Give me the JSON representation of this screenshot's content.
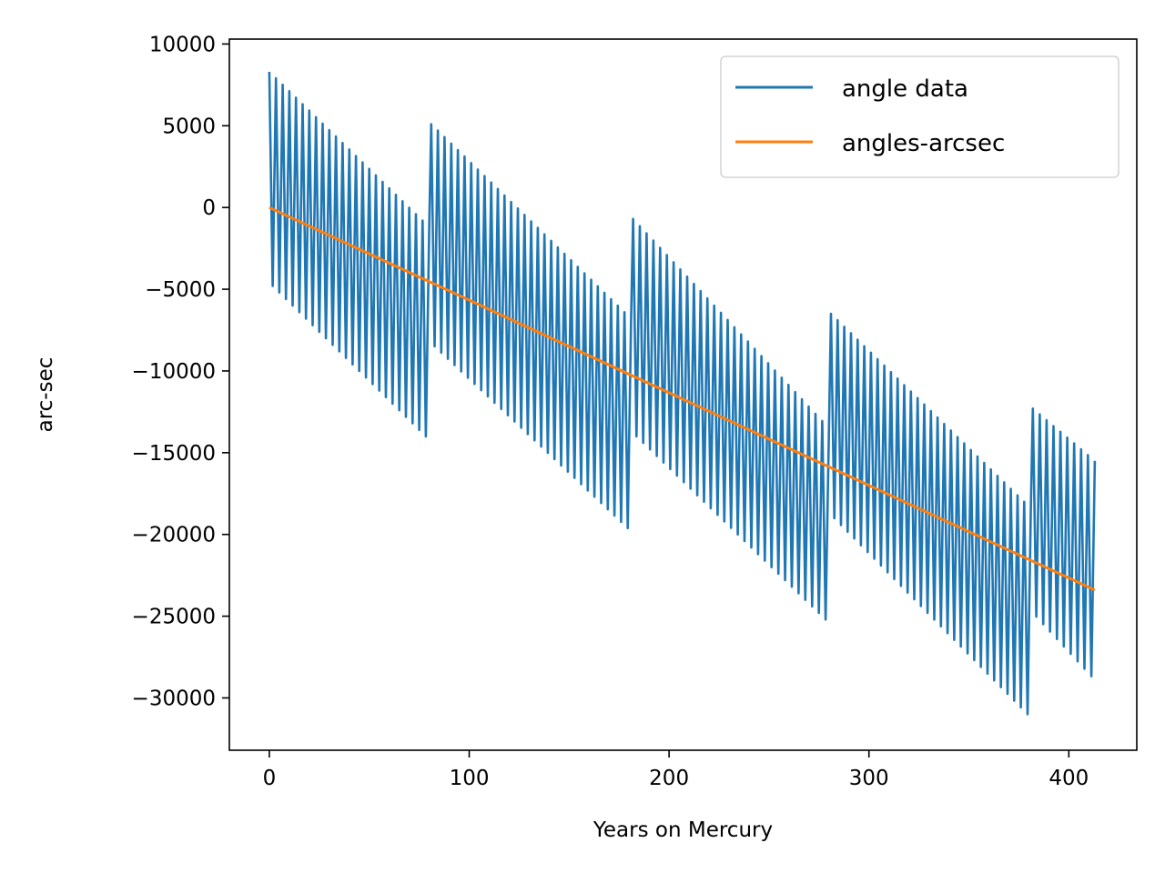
{
  "chart_data": {
    "type": "line",
    "title": "",
    "xlabel": "Years on Mercury",
    "ylabel": "arc-sec",
    "xlim": [
      -20,
      434
    ],
    "ylim": [
      -33200,
      10300
    ],
    "x_ticks": [
      0,
      100,
      200,
      300,
      400
    ],
    "x_tick_labels": [
      "0",
      "100",
      "200",
      "300",
      "400"
    ],
    "y_ticks": [
      10000,
      5000,
      0,
      -5000,
      -10000,
      -15000,
      -20000,
      -25000,
      -30000
    ],
    "y_tick_labels": [
      "10000",
      "5000",
      "0",
      "−5000",
      "−10000",
      "−15000",
      "−20000",
      "−25000",
      "−30000"
    ],
    "grid": false,
    "legend_position": "top-right",
    "series": [
      {
        "name": "angle data",
        "color": "#1f77b4",
        "segments": [
          {
            "x_start": 0,
            "x_end": 80,
            "upper": [
              8300,
              -1200
            ],
            "lower": [
              -4600,
              -14200
            ]
          },
          {
            "x_start": 81,
            "x_end": 181,
            "upper": [
              5100,
              -6800
            ],
            "lower": [
              -8300,
              -19800
            ]
          },
          {
            "x_start": 182,
            "x_end": 280,
            "upper": [
              -700,
              -13500
            ],
            "lower": [
              -13800,
              -25400
            ]
          },
          {
            "x_start": 281,
            "x_end": 381,
            "upper": [
              -6500,
              -18400
            ],
            "lower": [
              -18800,
              -31200
            ]
          },
          {
            "x_start": 382,
            "x_end": 413,
            "upper": [
              -12300,
              -15500
            ],
            "lower": [
              -24800,
              -28900
            ]
          }
        ],
        "oscillations_per_segment": 30
      },
      {
        "name": "angles-arcsec",
        "color": "#ff7f0e",
        "x": [
          0,
          413
        ],
        "y": [
          0,
          -23400
        ]
      }
    ]
  }
}
